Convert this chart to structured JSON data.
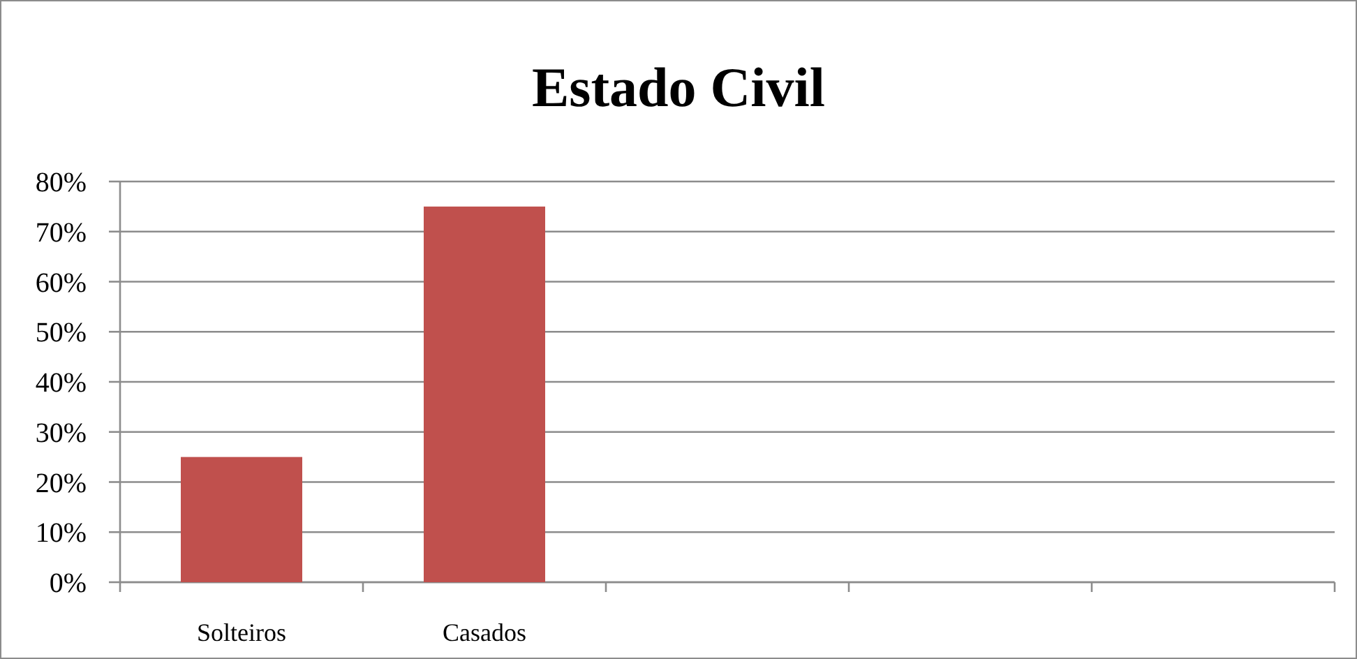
{
  "chart_data": {
    "type": "bar",
    "title": "Estado Civil",
    "categories": [
      "Solteiros",
      "Casados",
      null,
      null,
      null
    ],
    "values": [
      25,
      75,
      null,
      null,
      null
    ],
    "color": "#c0504d",
    "ylim": [
      0,
      80
    ],
    "yticks": [
      {
        "value": 0,
        "label": "0%"
      },
      {
        "value": 10,
        "label": "10%"
      },
      {
        "value": 20,
        "label": "20%"
      },
      {
        "value": 30,
        "label": "30%"
      },
      {
        "value": 40,
        "label": "40%"
      },
      {
        "value": 50,
        "label": "50%"
      },
      {
        "value": 60,
        "label": "60%"
      },
      {
        "value": 70,
        "label": "70%"
      },
      {
        "value": 80,
        "label": "80%"
      }
    ],
    "grid": "y"
  }
}
